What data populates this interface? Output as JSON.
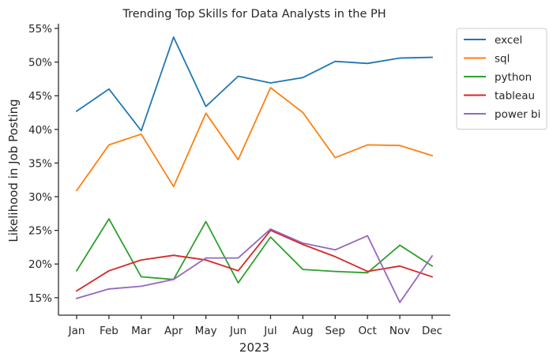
{
  "chart_data": {
    "type": "line",
    "title": "Trending Top Skills for Data Analysts in the PH",
    "xlabel": "2023",
    "ylabel": "Likelihood in Job Posting",
    "categories": [
      "Jan",
      "Feb",
      "Mar",
      "Apr",
      "May",
      "Jun",
      "Jul",
      "Aug",
      "Sep",
      "Oct",
      "Nov",
      "Dec"
    ],
    "y_ticks": [
      15,
      20,
      25,
      30,
      35,
      40,
      45,
      50,
      55
    ],
    "y_tick_labels": [
      "15%",
      "20%",
      "25%",
      "30%",
      "35%",
      "40%",
      "45%",
      "50%",
      "55%"
    ],
    "ylim": [
      12.4,
      55.7
    ],
    "grid": false,
    "legend_position": "outside-top-right",
    "series": [
      {
        "name": "excel",
        "color": "#1f77b4",
        "values": [
          42.7,
          46.0,
          39.8,
          53.7,
          43.4,
          47.9,
          46.9,
          47.7,
          50.1,
          49.8,
          50.6,
          50.7
        ]
      },
      {
        "name": "sql",
        "color": "#ff7f0e",
        "values": [
          30.9,
          37.7,
          39.3,
          31.5,
          42.4,
          35.5,
          46.2,
          42.5,
          35.8,
          37.7,
          37.6,
          36.1
        ]
      },
      {
        "name": "python",
        "color": "#2ca02c",
        "values": [
          19.0,
          26.7,
          18.1,
          17.7,
          26.3,
          17.2,
          24.0,
          19.2,
          18.9,
          18.7,
          22.8,
          19.7
        ]
      },
      {
        "name": "tableau",
        "color": "#d62728",
        "values": [
          16.0,
          19.0,
          20.6,
          21.3,
          20.6,
          19.0,
          25.0,
          22.9,
          21.1,
          18.9,
          19.7,
          18.1
        ]
      },
      {
        "name": "power bi",
        "color": "#9467bd",
        "values": [
          14.9,
          16.3,
          16.7,
          17.7,
          20.9,
          20.9,
          25.2,
          23.1,
          22.1,
          24.2,
          14.3,
          21.2
        ]
      }
    ]
  }
}
